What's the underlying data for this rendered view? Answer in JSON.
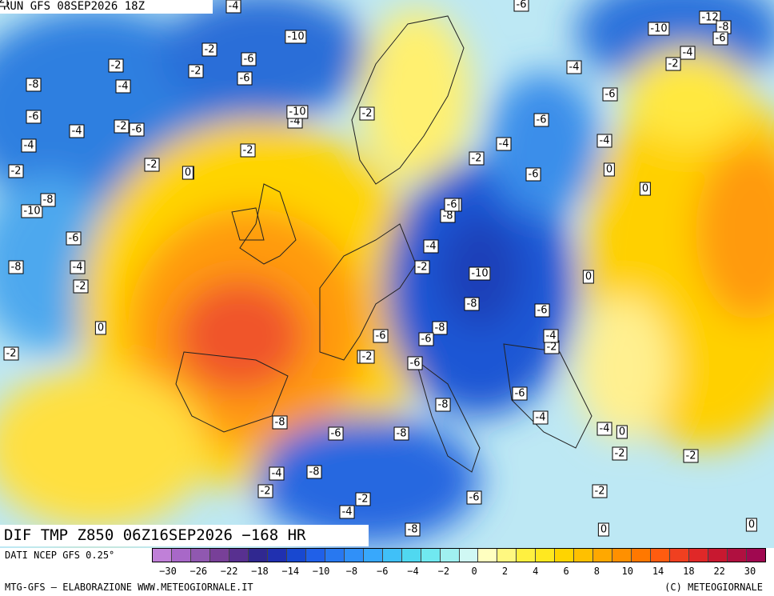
{
  "header": {
    "run_title": "RUN GFS 08SEP2026 18Z"
  },
  "map": {
    "field_title": "DIF TMP Z850 06Z16SEP2026 −168 HR",
    "value_labels": [
      "-4",
      "-6",
      "-12",
      "-8",
      "-6",
      "-10",
      "-2",
      "-6",
      "-10",
      "-2",
      "-6",
      "-4",
      "-2",
      "-4",
      "-8",
      "-4",
      "-2",
      "-2",
      "-4",
      "0",
      "-2",
      "-6",
      "-4",
      "-6",
      "-4",
      "-6",
      "-4",
      "-2",
      "-2",
      "-2",
      "0",
      "-2",
      "-4",
      "0",
      "-2",
      "-2",
      "0",
      "-2",
      "-4",
      "-8",
      "-10",
      "-8",
      "-6",
      "-6",
      "-4",
      "-8",
      "-2",
      "-4",
      "-10",
      "-10",
      "-6",
      "-2",
      "0",
      "-8",
      "0",
      "-8",
      "-6",
      "-6",
      "-4",
      "-4",
      "-2",
      "-2",
      "0",
      "-6",
      "-4",
      "-8",
      "-6",
      "-6",
      "-2",
      "-6",
      "0",
      "-8",
      "-4",
      "-8",
      "-2",
      "-4",
      "-2",
      "-8",
      "-6",
      "-10",
      "-8",
      "-6",
      "-8",
      "0",
      "-2"
    ]
  },
  "legend": {
    "data_source": "DATI NCEP GFS 0.25°",
    "tick_labels": [
      "−30",
      "−26",
      "−22",
      "−18",
      "−14",
      "−10",
      "−8",
      "−6",
      "−4",
      "−2",
      "0",
      "2",
      "4",
      "6",
      "8",
      "10",
      "14",
      "18",
      "22",
      "30"
    ],
    "colors": [
      "#c080d8",
      "#a868c8",
      "#9058b0",
      "#784098",
      "#583090",
      "#302890",
      "#2030b0",
      "#1848d0",
      "#2060e8",
      "#2878f0",
      "#3090f8",
      "#38a8fc",
      "#40c0f8",
      "#50d8f0",
      "#70e8f0",
      "#a0f0f0",
      "#d0f8f4",
      "#ffffc0",
      "#fff880",
      "#fff040",
      "#ffe820",
      "#ffd400",
      "#ffc000",
      "#ffa800",
      "#ff9000",
      "#ff7800",
      "#ff5c10",
      "#f04020",
      "#e02828",
      "#c81830",
      "#b01040",
      "#a00850"
    ]
  },
  "footer": {
    "credits_left": "MTG-GFS – ELABORAZIONE WWW.METEOGIORNALE.IT",
    "credits_right": "(C) METEOGIORNALE"
  }
}
